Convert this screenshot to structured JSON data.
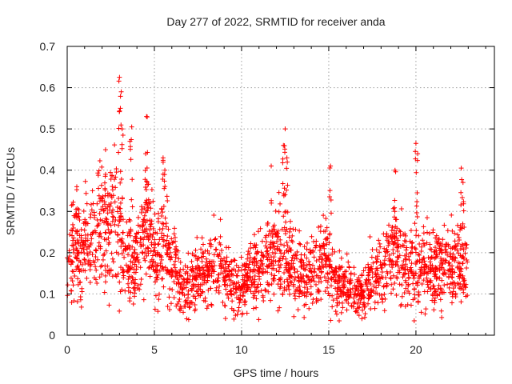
{
  "chart_data": {
    "type": "scatter",
    "title": "Day 277 of 2022, SRMTID for receiver anda",
    "xlabel": "GPS time / hours",
    "ylabel": "SRMTID / TECUs",
    "xlim": [
      0,
      24.5
    ],
    "ylim": [
      0,
      0.7
    ],
    "xticks": [
      0,
      5,
      10,
      15,
      20
    ],
    "yticks": [
      0,
      0.1,
      0.2,
      0.3,
      0.4,
      0.5,
      0.6,
      0.7
    ],
    "xtick_labels": [
      "0",
      "5",
      "10",
      "15",
      "20"
    ],
    "ytick_labels": [
      "0",
      "0.1",
      "0.2",
      "0.3",
      "0.4",
      "0.5",
      "0.6",
      "0.7"
    ],
    "grid": true,
    "marker": "plus",
    "marker_color": "#ff0000",
    "profile": [
      [
        0.0,
        0.19
      ],
      [
        0.5,
        0.21
      ],
      [
        1.0,
        0.22
      ],
      [
        1.5,
        0.24
      ],
      [
        2.0,
        0.25
      ],
      [
        2.5,
        0.26
      ],
      [
        2.8,
        0.27
      ],
      [
        3.2,
        0.2
      ],
      [
        3.6,
        0.17
      ],
      [
        4.0,
        0.18
      ],
      [
        4.5,
        0.25
      ],
      [
        5.0,
        0.19
      ],
      [
        5.5,
        0.22
      ],
      [
        6.0,
        0.18
      ],
      [
        6.5,
        0.13
      ],
      [
        7.0,
        0.12
      ],
      [
        7.5,
        0.14
      ],
      [
        8.0,
        0.15
      ],
      [
        8.5,
        0.17
      ],
      [
        9.0,
        0.15
      ],
      [
        9.5,
        0.12
      ],
      [
        10.0,
        0.12
      ],
      [
        10.5,
        0.16
      ],
      [
        11.0,
        0.17
      ],
      [
        11.5,
        0.18
      ],
      [
        12.0,
        0.2
      ],
      [
        12.5,
        0.19
      ],
      [
        13.0,
        0.16
      ],
      [
        13.5,
        0.15
      ],
      [
        14.0,
        0.16
      ],
      [
        14.5,
        0.18
      ],
      [
        15.0,
        0.17
      ],
      [
        15.5,
        0.12
      ],
      [
        16.0,
        0.12
      ],
      [
        16.5,
        0.1
      ],
      [
        17.0,
        0.11
      ],
      [
        17.5,
        0.14
      ],
      [
        18.0,
        0.16
      ],
      [
        18.5,
        0.2
      ],
      [
        19.0,
        0.19
      ],
      [
        19.5,
        0.17
      ],
      [
        20.0,
        0.17
      ],
      [
        20.5,
        0.17
      ],
      [
        21.0,
        0.16
      ],
      [
        21.5,
        0.17
      ],
      [
        22.0,
        0.16
      ],
      [
        22.5,
        0.18
      ],
      [
        23.0,
        0.16
      ]
    ],
    "spikes": [
      {
        "x": 0.55,
        "y": 0.36
      },
      {
        "x": 2.2,
        "y": 0.39
      },
      {
        "x": 3.0,
        "y": 0.625
      },
      {
        "x": 3.1,
        "y": 0.59
      },
      {
        "x": 3.05,
        "y": 0.55
      },
      {
        "x": 3.15,
        "y": 0.5
      },
      {
        "x": 3.7,
        "y": 0.505
      },
      {
        "x": 3.6,
        "y": 0.47
      },
      {
        "x": 4.55,
        "y": 0.53
      },
      {
        "x": 4.5,
        "y": 0.44
      },
      {
        "x": 5.5,
        "y": 0.43
      },
      {
        "x": 5.6,
        "y": 0.4
      },
      {
        "x": 11.7,
        "y": 0.41
      },
      {
        "x": 12.5,
        "y": 0.5
      },
      {
        "x": 12.4,
        "y": 0.46
      },
      {
        "x": 12.6,
        "y": 0.43
      },
      {
        "x": 15.1,
        "y": 0.41
      },
      {
        "x": 18.8,
        "y": 0.4
      },
      {
        "x": 20.0,
        "y": 0.465
      },
      {
        "x": 20.1,
        "y": 0.44
      },
      {
        "x": 22.6,
        "y": 0.405
      },
      {
        "x": 22.7,
        "y": 0.37
      },
      {
        "x": 13.0,
        "y": 0.045
      },
      {
        "x": 15.6,
        "y": 0.035
      },
      {
        "x": 19.9,
        "y": 0.035
      },
      {
        "x": 16.9,
        "y": 0.04
      }
    ],
    "n_points": 2300,
    "x_end": 22.95
  }
}
